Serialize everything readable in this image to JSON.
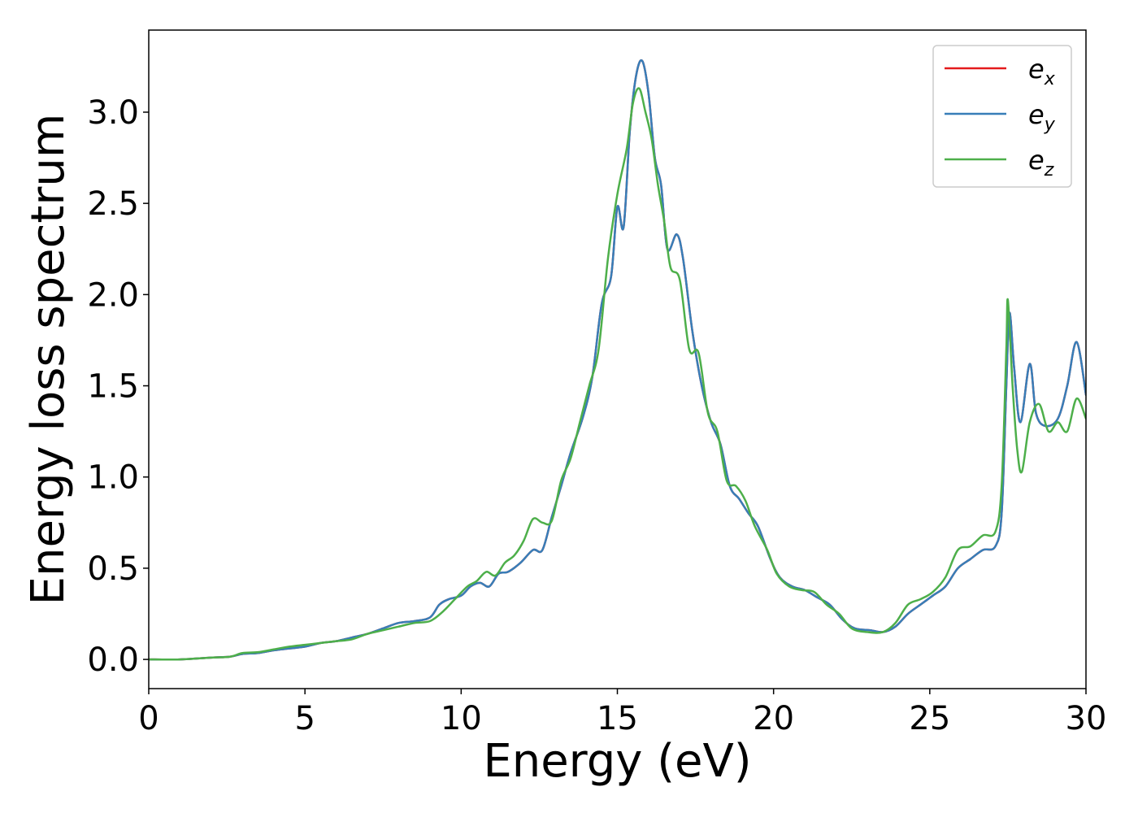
{
  "chart_data": {
    "type": "line",
    "title": "",
    "xlabel": "Energy (eV)",
    "ylabel": "Energy loss spectrum",
    "xlim": [
      0,
      30
    ],
    "ylim": [
      -0.16,
      3.45
    ],
    "xticks": [
      0,
      5,
      10,
      15,
      20,
      25,
      30
    ],
    "xtick_labels": [
      "0",
      "5",
      "10",
      "15",
      "20",
      "25",
      "30"
    ],
    "yticks": [
      0.0,
      0.5,
      1.0,
      1.5,
      2.0,
      2.5,
      3.0
    ],
    "ytick_labels": [
      "0.0",
      "0.5",
      "1.0",
      "1.5",
      "2.0",
      "2.5",
      "3.0"
    ],
    "grid": false,
    "legend_position": "top-right",
    "series": [
      {
        "name": "e_x",
        "label_main": "e",
        "label_sub": "x",
        "color": "#e41a1c",
        "points": [
          [
            0,
            0
          ],
          [
            1,
            0.0
          ],
          [
            2,
            0.01
          ],
          [
            2.6,
            0.015
          ],
          [
            3,
            0.03
          ],
          [
            3.5,
            0.035
          ],
          [
            4,
            0.05
          ],
          [
            4.5,
            0.06
          ],
          [
            5,
            0.07
          ],
          [
            5.5,
            0.09
          ],
          [
            6,
            0.1
          ],
          [
            6.5,
            0.12
          ],
          [
            7,
            0.14
          ],
          [
            7.5,
            0.17
          ],
          [
            8,
            0.2
          ],
          [
            8.5,
            0.21
          ],
          [
            9,
            0.23
          ],
          [
            9.3,
            0.3
          ],
          [
            9.6,
            0.33
          ],
          [
            10,
            0.35
          ],
          [
            10.3,
            0.4
          ],
          [
            10.6,
            0.42
          ],
          [
            10.9,
            0.4
          ],
          [
            11.2,
            0.47
          ],
          [
            11.5,
            0.48
          ],
          [
            11.9,
            0.53
          ],
          [
            12.3,
            0.6
          ],
          [
            12.6,
            0.6
          ],
          [
            12.9,
            0.78
          ],
          [
            13.2,
            0.95
          ],
          [
            13.5,
            1.13
          ],
          [
            13.9,
            1.33
          ],
          [
            14.2,
            1.55
          ],
          [
            14.5,
            1.95
          ],
          [
            14.8,
            2.1
          ],
          [
            15,
            2.48
          ],
          [
            15.2,
            2.37
          ],
          [
            15.4,
            2.9
          ],
          [
            15.6,
            3.2
          ],
          [
            15.8,
            3.28
          ],
          [
            16,
            3.1
          ],
          [
            16.2,
            2.75
          ],
          [
            16.4,
            2.6
          ],
          [
            16.6,
            2.25
          ],
          [
            16.9,
            2.33
          ],
          [
            17.1,
            2.2
          ],
          [
            17.4,
            1.8
          ],
          [
            17.7,
            1.5
          ],
          [
            18,
            1.3
          ],
          [
            18.3,
            1.18
          ],
          [
            18.6,
            0.95
          ],
          [
            18.9,
            0.88
          ],
          [
            19.2,
            0.8
          ],
          [
            19.5,
            0.73
          ],
          [
            19.9,
            0.55
          ],
          [
            20.2,
            0.45
          ],
          [
            20.6,
            0.4
          ],
          [
            21,
            0.38
          ],
          [
            21.4,
            0.34
          ],
          [
            21.8,
            0.3
          ],
          [
            22.2,
            0.22
          ],
          [
            22.6,
            0.17
          ],
          [
            23.1,
            0.16
          ],
          [
            23.5,
            0.15
          ],
          [
            23.9,
            0.18
          ],
          [
            24.3,
            0.25
          ],
          [
            24.7,
            0.3
          ],
          [
            25.1,
            0.35
          ],
          [
            25.5,
            0.4
          ],
          [
            25.9,
            0.5
          ],
          [
            26.3,
            0.55
          ],
          [
            26.7,
            0.6
          ],
          [
            27.1,
            0.62
          ],
          [
            27.3,
            0.8
          ],
          [
            27.45,
            1.5
          ],
          [
            27.55,
            1.9
          ],
          [
            27.7,
            1.6
          ],
          [
            27.9,
            1.3
          ],
          [
            28.2,
            1.62
          ],
          [
            28.4,
            1.35
          ],
          [
            28.7,
            1.28
          ],
          [
            29.1,
            1.32
          ],
          [
            29.4,
            1.5
          ],
          [
            29.7,
            1.74
          ],
          [
            30,
            1.45
          ]
        ]
      },
      {
        "name": "e_y",
        "label_main": "e",
        "label_sub": "y",
        "color": "#377eb8",
        "points": [
          [
            0,
            0
          ],
          [
            1,
            0.0
          ],
          [
            2,
            0.01
          ],
          [
            2.6,
            0.015
          ],
          [
            3,
            0.03
          ],
          [
            3.5,
            0.035
          ],
          [
            4,
            0.05
          ],
          [
            4.5,
            0.06
          ],
          [
            5,
            0.07
          ],
          [
            5.5,
            0.09
          ],
          [
            6,
            0.1
          ],
          [
            6.5,
            0.12
          ],
          [
            7,
            0.14
          ],
          [
            7.5,
            0.17
          ],
          [
            8,
            0.2
          ],
          [
            8.5,
            0.21
          ],
          [
            9,
            0.23
          ],
          [
            9.3,
            0.3
          ],
          [
            9.6,
            0.33
          ],
          [
            10,
            0.35
          ],
          [
            10.3,
            0.4
          ],
          [
            10.6,
            0.42
          ],
          [
            10.9,
            0.4
          ],
          [
            11.2,
            0.47
          ],
          [
            11.5,
            0.48
          ],
          [
            11.9,
            0.53
          ],
          [
            12.3,
            0.6
          ],
          [
            12.6,
            0.6
          ],
          [
            12.9,
            0.78
          ],
          [
            13.2,
            0.95
          ],
          [
            13.5,
            1.13
          ],
          [
            13.9,
            1.33
          ],
          [
            14.2,
            1.55
          ],
          [
            14.5,
            1.95
          ],
          [
            14.8,
            2.1
          ],
          [
            15,
            2.48
          ],
          [
            15.2,
            2.37
          ],
          [
            15.4,
            2.9
          ],
          [
            15.6,
            3.2
          ],
          [
            15.8,
            3.28
          ],
          [
            16,
            3.1
          ],
          [
            16.2,
            2.75
          ],
          [
            16.4,
            2.6
          ],
          [
            16.6,
            2.25
          ],
          [
            16.9,
            2.33
          ],
          [
            17.1,
            2.2
          ],
          [
            17.4,
            1.8
          ],
          [
            17.7,
            1.5
          ],
          [
            18,
            1.3
          ],
          [
            18.3,
            1.18
          ],
          [
            18.6,
            0.95
          ],
          [
            18.9,
            0.88
          ],
          [
            19.2,
            0.8
          ],
          [
            19.5,
            0.73
          ],
          [
            19.9,
            0.55
          ],
          [
            20.2,
            0.45
          ],
          [
            20.6,
            0.4
          ],
          [
            21,
            0.38
          ],
          [
            21.4,
            0.34
          ],
          [
            21.8,
            0.3
          ],
          [
            22.2,
            0.22
          ],
          [
            22.6,
            0.17
          ],
          [
            23.1,
            0.16
          ],
          [
            23.5,
            0.15
          ],
          [
            23.9,
            0.18
          ],
          [
            24.3,
            0.25
          ],
          [
            24.7,
            0.3
          ],
          [
            25.1,
            0.35
          ],
          [
            25.5,
            0.4
          ],
          [
            25.9,
            0.5
          ],
          [
            26.3,
            0.55
          ],
          [
            26.7,
            0.6
          ],
          [
            27.1,
            0.62
          ],
          [
            27.3,
            0.8
          ],
          [
            27.45,
            1.5
          ],
          [
            27.55,
            1.9
          ],
          [
            27.7,
            1.6
          ],
          [
            27.9,
            1.3
          ],
          [
            28.2,
            1.62
          ],
          [
            28.4,
            1.35
          ],
          [
            28.7,
            1.28
          ],
          [
            29.1,
            1.32
          ],
          [
            29.4,
            1.5
          ],
          [
            29.7,
            1.74
          ],
          [
            30,
            1.45
          ]
        ]
      },
      {
        "name": "e_z",
        "label_main": "e",
        "label_sub": "z",
        "color": "#4daf4a",
        "points": [
          [
            0,
            0
          ],
          [
            1,
            0.0
          ],
          [
            2,
            0.01
          ],
          [
            2.6,
            0.015
          ],
          [
            3,
            0.035
          ],
          [
            3.5,
            0.04
          ],
          [
            4,
            0.055
          ],
          [
            4.5,
            0.07
          ],
          [
            5,
            0.08
          ],
          [
            5.5,
            0.09
          ],
          [
            6,
            0.1
          ],
          [
            6.5,
            0.11
          ],
          [
            7,
            0.14
          ],
          [
            7.5,
            0.16
          ],
          [
            8,
            0.18
          ],
          [
            8.5,
            0.2
          ],
          [
            9,
            0.21
          ],
          [
            9.4,
            0.26
          ],
          [
            9.8,
            0.33
          ],
          [
            10.2,
            0.4
          ],
          [
            10.5,
            0.43
          ],
          [
            10.8,
            0.48
          ],
          [
            11.1,
            0.46
          ],
          [
            11.4,
            0.53
          ],
          [
            11.7,
            0.57
          ],
          [
            12,
            0.65
          ],
          [
            12.3,
            0.77
          ],
          [
            12.6,
            0.75
          ],
          [
            12.9,
            0.76
          ],
          [
            13.2,
            0.98
          ],
          [
            13.5,
            1.1
          ],
          [
            13.8,
            1.3
          ],
          [
            14.1,
            1.5
          ],
          [
            14.4,
            1.7
          ],
          [
            14.7,
            2.2
          ],
          [
            15,
            2.55
          ],
          [
            15.3,
            2.8
          ],
          [
            15.5,
            3.05
          ],
          [
            15.7,
            3.13
          ],
          [
            15.9,
            3.0
          ],
          [
            16.1,
            2.85
          ],
          [
            16.3,
            2.6
          ],
          [
            16.5,
            2.4
          ],
          [
            16.7,
            2.15
          ],
          [
            17,
            2.08
          ],
          [
            17.3,
            1.7
          ],
          [
            17.6,
            1.68
          ],
          [
            17.9,
            1.35
          ],
          [
            18.2,
            1.25
          ],
          [
            18.5,
            0.98
          ],
          [
            18.8,
            0.95
          ],
          [
            19.1,
            0.87
          ],
          [
            19.4,
            0.73
          ],
          [
            19.8,
            0.6
          ],
          [
            20.1,
            0.47
          ],
          [
            20.5,
            0.4
          ],
          [
            20.9,
            0.38
          ],
          [
            21.3,
            0.37
          ],
          [
            21.7,
            0.3
          ],
          [
            22.1,
            0.25
          ],
          [
            22.5,
            0.17
          ],
          [
            23,
            0.15
          ],
          [
            23.5,
            0.15
          ],
          [
            23.9,
            0.2
          ],
          [
            24.3,
            0.3
          ],
          [
            24.7,
            0.33
          ],
          [
            25.1,
            0.37
          ],
          [
            25.5,
            0.45
          ],
          [
            25.9,
            0.6
          ],
          [
            26.3,
            0.62
          ],
          [
            26.7,
            0.68
          ],
          [
            27.1,
            0.7
          ],
          [
            27.3,
            0.95
          ],
          [
            27.45,
            1.7
          ],
          [
            27.5,
            1.97
          ],
          [
            27.65,
            1.5
          ],
          [
            27.8,
            1.15
          ],
          [
            27.95,
            1.03
          ],
          [
            28.2,
            1.3
          ],
          [
            28.5,
            1.4
          ],
          [
            28.8,
            1.25
          ],
          [
            29.1,
            1.3
          ],
          [
            29.4,
            1.25
          ],
          [
            29.7,
            1.43
          ],
          [
            30,
            1.32
          ]
        ]
      }
    ]
  }
}
